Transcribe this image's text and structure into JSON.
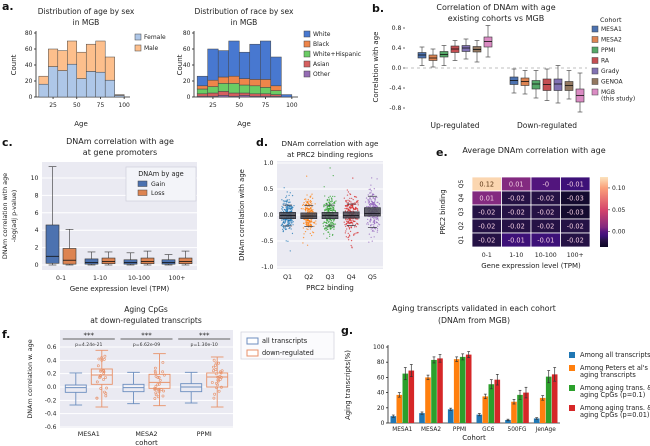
{
  "figure_bg": "#ffffff",
  "panel_letters": {
    "a": "a.",
    "b": "b.",
    "c": "c.",
    "d": "d.",
    "e": "e.",
    "f": "f.",
    "g": "g."
  },
  "chart_data": [
    {
      "id": "a1",
      "type": "stacked_hist",
      "title_lines": [
        "Distribution of age by sex",
        "in MGB"
      ],
      "xlabel": "Age",
      "ylabel": "Count",
      "bin_start": 10,
      "bin_width": 10,
      "xticks": [
        25,
        50,
        75,
        100
      ],
      "yticks": [
        0,
        20,
        40,
        60,
        80
      ],
      "xlim": [
        7,
        103
      ],
      "ylim": [
        0,
        80
      ],
      "series": [
        {
          "name": "Female",
          "color": "#aec7e8",
          "values": [
            16,
            38,
            33,
            41,
            23,
            32,
            31,
            21,
            2
          ]
        },
        {
          "name": "Male",
          "color": "#fdbf8c",
          "values": [
            10,
            22,
            25,
            29,
            33,
            34,
            39,
            29,
            1
          ]
        }
      ],
      "legend_order": [
        0,
        1
      ]
    },
    {
      "id": "a2",
      "type": "stacked_hist",
      "title_lines": [
        "Distribution of race by sex",
        "in MGB"
      ],
      "xlabel": "Age",
      "ylabel": "Count",
      "bin_start": 10,
      "bin_width": 10,
      "xticks": [
        25,
        50,
        75,
        100
      ],
      "yticks": [
        0,
        20,
        40,
        60,
        80
      ],
      "xlim": [
        7,
        103
      ],
      "ylim": [
        0,
        80
      ],
      "series": [
        {
          "name": "Other",
          "color": "#956cb4",
          "values": [
            1,
            1,
            2,
            1,
            2,
            1,
            1,
            1,
            0
          ]
        },
        {
          "name": "Asian",
          "color": "#d65f5f",
          "values": [
            3,
            4,
            5,
            4,
            3,
            3,
            3,
            2,
            0
          ]
        },
        {
          "name": "White+Hispanic",
          "color": "#6acc64",
          "values": [
            6,
            8,
            10,
            12,
            10,
            10,
            8,
            5,
            0
          ]
        },
        {
          "name": "Black",
          "color": "#ee854a",
          "values": [
            4,
            8,
            8,
            9,
            8,
            8,
            10,
            6,
            0
          ]
        },
        {
          "name": "White",
          "color": "#4878d0",
          "values": [
            12,
            39,
            33,
            44,
            33,
            44,
            48,
            36,
            3
          ]
        }
      ],
      "legend_order": [
        4,
        3,
        2,
        1,
        0
      ]
    },
    {
      "id": "b",
      "type": "cohort_box",
      "title_lines": [
        "Correlation of DNAm with age",
        "existing cohorts vs MGB"
      ],
      "ylabel": "Correlation with age",
      "yticks": [
        0.8,
        0.4,
        0.0,
        -0.4,
        -0.8
      ],
      "ytick_labels": [
        "0.8",
        "0.4",
        "0.0",
        "-0.4",
        "-0.8"
      ],
      "legend_title": "Cohort",
      "cohorts": [
        {
          "lines": [
            "MESA1"
          ],
          "color": "#4c72b0"
        },
        {
          "lines": [
            "MESA2"
          ],
          "color": "#dd8452"
        },
        {
          "lines": [
            "PPMI"
          ],
          "color": "#55a868"
        },
        {
          "lines": [
            "RA"
          ],
          "color": "#c44e52"
        },
        {
          "lines": [
            "Grady"
          ],
          "color": "#8172b3"
        },
        {
          "lines": [
            "GENOA"
          ],
          "color": "#937860"
        },
        {
          "lines": [
            "MGB",
            "(this study)"
          ],
          "color": "#da8bc3"
        }
      ],
      "groups": [
        {
          "label": "Up-regulated",
          "boxes": [
            {
              "lo": 0.05,
              "q1": 0.2,
              "med": 0.26,
              "q3": 0.31,
              "hi": 0.42
            },
            {
              "lo": 0.02,
              "q1": 0.15,
              "med": 0.2,
              "q3": 0.26,
              "hi": 0.38
            },
            {
              "lo": 0.05,
              "q1": 0.22,
              "med": 0.27,
              "q3": 0.33,
              "hi": 0.45
            },
            {
              "lo": 0.15,
              "q1": 0.31,
              "med": 0.38,
              "q3": 0.44,
              "hi": 0.55
            },
            {
              "lo": 0.18,
              "q1": 0.33,
              "med": 0.4,
              "q3": 0.45,
              "hi": 0.58
            },
            {
              "lo": 0.12,
              "q1": 0.32,
              "med": 0.37,
              "q3": 0.43,
              "hi": 0.55
            },
            {
              "lo": 0.22,
              "q1": 0.42,
              "med": 0.53,
              "q3": 0.62,
              "hi": 0.85
            }
          ]
        },
        {
          "label": "Down-regulated",
          "boxes": [
            {
              "lo": -0.5,
              "q1": -0.33,
              "med": -0.25,
              "q3": -0.18,
              "hi": -0.02
            },
            {
              "lo": -0.52,
              "q1": -0.35,
              "med": -0.27,
              "q3": -0.2,
              "hi": -0.05
            },
            {
              "lo": -0.6,
              "q1": -0.42,
              "med": -0.32,
              "q3": -0.25,
              "hi": -0.05
            },
            {
              "lo": -0.65,
              "q1": -0.45,
              "med": -0.33,
              "q3": -0.22,
              "hi": -0.02
            },
            {
              "lo": -0.7,
              "q1": -0.45,
              "med": -0.32,
              "q3": -0.22,
              "hi": 0.05
            },
            {
              "lo": -0.62,
              "q1": -0.45,
              "med": -0.35,
              "q3": -0.27,
              "hi": -0.05
            },
            {
              "lo": -0.88,
              "q1": -0.68,
              "med": -0.55,
              "q3": -0.42,
              "hi": -0.1
            }
          ]
        }
      ]
    },
    {
      "id": "c",
      "type": "promoter_box",
      "title_lines": [
        "DNAm correlation with age",
        "at gene promoters"
      ],
      "ylabel_lines": [
        "DNAm correlation with age",
        "-log(adj p-value)"
      ],
      "xlabel": "Gene expression level (TPM)",
      "categories": [
        "0-1",
        "1-10",
        "10-100",
        "100+"
      ],
      "yticks": [
        0,
        2,
        4,
        6,
        8,
        10
      ],
      "legend_title": "DNAm by age",
      "series": [
        {
          "name": "Gain",
          "color": "#4c72b0",
          "boxes": [
            {
              "lo": 0,
              "q1": 0.2,
              "med": 1.0,
              "q3": 4.6,
              "hi": 11.3
            },
            {
              "lo": 0,
              "q1": 0.1,
              "med": 0.3,
              "q3": 0.7,
              "hi": 1.5
            },
            {
              "lo": 0,
              "q1": 0.1,
              "med": 0.3,
              "q3": 0.6,
              "hi": 1.4
            },
            {
              "lo": 0,
              "q1": 0.1,
              "med": 0.3,
              "q3": 0.6,
              "hi": 1.2
            }
          ]
        },
        {
          "name": "Loss",
          "color": "#dd8452",
          "boxes": [
            {
              "lo": 0,
              "q1": 0.1,
              "med": 0.55,
              "q3": 1.9,
              "hi": 4.1
            },
            {
              "lo": 0,
              "q1": 0.15,
              "med": 0.4,
              "q3": 0.8,
              "hi": 1.5
            },
            {
              "lo": 0,
              "q1": 0.15,
              "med": 0.4,
              "q3": 0.8,
              "hi": 1.6
            },
            {
              "lo": 0,
              "q1": 0.15,
              "med": 0.4,
              "q3": 0.8,
              "hi": 1.6
            }
          ]
        }
      ]
    },
    {
      "id": "d",
      "type": "strip_box",
      "title_lines": [
        "DNAm correlation with age",
        "at PRC2 binding regions"
      ],
      "ylabel": "DNAm correlation with age",
      "xlabel": "PRC2 binding",
      "categories": [
        "Q1",
        "Q2",
        "Q3",
        "Q4",
        "Q5"
      ],
      "colors": [
        "#1f77b4",
        "#ff7f0e",
        "#2ca02c",
        "#d62728",
        "#9467bd"
      ],
      "yticks": [
        1.0,
        0.5,
        0.0,
        -0.5,
        -1.0
      ],
      "ytick_labels": [
        "1.0",
        "0.5",
        "0.0",
        "-0.5",
        "-1.0"
      ],
      "boxes": [
        {
          "q1": -0.07,
          "med": -0.01,
          "q3": 0.05,
          "cap_hi": 0.19,
          "cap_lo": -0.21
        },
        {
          "q1": -0.07,
          "med": -0.02,
          "q3": 0.04,
          "cap_hi": 0.18,
          "cap_lo": -0.22
        },
        {
          "q1": -0.07,
          "med": -0.01,
          "q3": 0.05,
          "cap_hi": 0.19,
          "cap_lo": -0.21
        },
        {
          "q1": -0.06,
          "med": -0.01,
          "q3": 0.06,
          "cap_hi": 0.21,
          "cap_lo": -0.2
        },
        {
          "q1": -0.02,
          "med": 0.03,
          "q3": 0.14,
          "cap_hi": 0.36,
          "cap_lo": -0.24
        }
      ],
      "scatter_n": 240
    },
    {
      "id": "e",
      "type": "heatmap",
      "title": "Average DNAm correlation with age",
      "ylabel": "PRC2 binding",
      "xlabel": "Gene expression level (TPM)",
      "row_labels": [
        "Q5",
        "Q4",
        "Q3",
        "Q2",
        "Q1"
      ],
      "col_labels": [
        "0-1",
        "1-10",
        "10-100",
        "100+"
      ],
      "cells": [
        [
          "0.12",
          "0.01",
          "-0",
          "-0.01"
        ],
        [
          "0.01",
          "-0.02",
          "-0.02",
          "-0.03"
        ],
        [
          "-0.02",
          "-0.02",
          "-0.02",
          "-0.03"
        ],
        [
          "-0.02",
          "-0.02",
          "-0.02",
          "-0.02"
        ],
        [
          "-0.02",
          "-0.01",
          "-0.01",
          "-0.02"
        ]
      ],
      "values": [
        [
          0.12,
          0.01,
          -0.001,
          -0.01
        ],
        [
          0.01,
          -0.02,
          -0.02,
          -0.03
        ],
        [
          -0.02,
          -0.02,
          -0.02,
          -0.03
        ],
        [
          -0.02,
          -0.02,
          -0.02,
          -0.02
        ],
        [
          -0.02,
          -0.01,
          -0.01,
          -0.02
        ]
      ],
      "colorbar_ticks": [
        [
          "0.10",
          0.1
        ],
        [
          "0.05",
          0.05
        ],
        [
          "0.00",
          0.0
        ]
      ]
    },
    {
      "id": "f",
      "type": "open_box",
      "title_lines": [
        "Aging CpGs",
        "at down-regulated transcripts"
      ],
      "ylabel": "DNAm correlation w. age",
      "xlabel": "cohort",
      "categories": [
        "MESA1",
        "MESA2",
        "PPMI"
      ],
      "yticks": [
        0.6,
        0.4,
        0.2,
        0.0,
        -0.2,
        -0.4,
        -0.6
      ],
      "ytick_labels": [
        "0.6",
        "0.4",
        "0.2",
        "0.0",
        "-0.2",
        "-0.4",
        "-0.6"
      ],
      "stars": "***",
      "p_values": [
        "p=4.24e-21",
        "p=6.62e-09",
        "p=1.30e-10"
      ],
      "series": [
        {
          "name": "all transcripts",
          "color": "#6c8ebf",
          "boxes": [
            {
              "lo": -0.27,
              "q1": -0.08,
              "med": -0.01,
              "q3": 0.03,
              "hi": 0.21
            },
            {
              "lo": -0.25,
              "q1": -0.07,
              "med": -0.01,
              "q3": 0.04,
              "hi": 0.22
            },
            {
              "lo": -0.24,
              "q1": -0.07,
              "med": 0.0,
              "q3": 0.05,
              "hi": 0.22
            }
          ]
        },
        {
          "name": "down-regulated",
          "color": "#e8926a",
          "boxes": [
            {
              "lo": -0.3,
              "q1": 0.04,
              "med": 0.18,
              "q3": 0.27,
              "hi": 0.55
            },
            {
              "lo": -0.28,
              "q1": -0.02,
              "med": 0.07,
              "q3": 0.19,
              "hi": 0.5
            },
            {
              "lo": -0.3,
              "q1": 0.0,
              "med": 0.15,
              "q3": 0.21,
              "hi": 0.45
            }
          ]
        }
      ]
    },
    {
      "id": "g",
      "type": "grouped_bar",
      "title_lines": [
        "Aging transcripts validated in each cohort",
        "(DNAm from MGB)"
      ],
      "ylabel": "Aging transcripts(%)",
      "xlabel": "Cohort",
      "categories": [
        "MESA1",
        "MESA2",
        "PPMI",
        "GC6",
        "500FG",
        "JenAge"
      ],
      "yticks": [
        0,
        20,
        40,
        60,
        80,
        100
      ],
      "series": [
        {
          "lines": [
            "Among all transcripts"
          ],
          "color": "#1f77b4",
          "values": [
            9,
            13,
            18,
            11,
            4,
            6
          ],
          "errors": [
            1.5,
            1.5,
            1.5,
            1.5,
            1,
            1
          ]
        },
        {
          "lines": [
            "Among Peters et al's",
            "aging transcripts"
          ],
          "color": "#ff7f0e",
          "values": [
            37,
            60,
            84,
            35,
            28,
            33
          ],
          "errors": [
            3,
            3,
            3,
            3,
            3,
            3
          ]
        },
        {
          "lines": [
            "Among aging trans. &",
            "aging CpGs (p=0.1)"
          ],
          "color": "#2ca02c",
          "values": [
            65,
            83,
            87,
            51,
            37,
            61
          ],
          "errors": [
            8,
            4,
            4,
            6,
            6,
            8
          ]
        },
        {
          "lines": [
            "Among aging trans. &",
            "aging CpGs (p=0.01)"
          ],
          "color": "#d62728",
          "values": [
            69,
            85,
            90,
            57,
            40,
            64
          ],
          "errors": [
            8,
            5,
            4,
            7,
            7,
            9
          ]
        }
      ]
    }
  ]
}
